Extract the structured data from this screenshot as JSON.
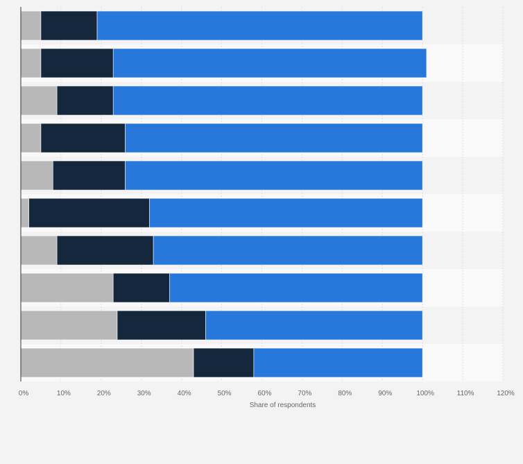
{
  "chart_data": {
    "type": "bar",
    "orientation": "horizontal",
    "stacked": true,
    "categories": [
      "",
      "",
      "",
      "",
      "",
      "",
      "",
      "",
      "",
      ""
    ],
    "series": [
      {
        "color": "#b8b8b8",
        "values": [
          5,
          5,
          9,
          5,
          8,
          2,
          9,
          23,
          24,
          43
        ]
      },
      {
        "color": "#14273d",
        "values": [
          14,
          18,
          14,
          21,
          18,
          30,
          24,
          14,
          22,
          15
        ]
      },
      {
        "color": "#2878dc",
        "values": [
          81,
          78,
          77,
          74,
          74,
          68,
          67,
          63,
          54,
          42
        ]
      }
    ],
    "xlabel": "Share of respondents",
    "xlim": [
      0,
      120
    ],
    "xticks": [
      "0%",
      "10%",
      "20%",
      "30%",
      "40%",
      "50%",
      "60%",
      "70%",
      "80%",
      "90%",
      "100%",
      "110%",
      "120%"
    ],
    "grid": true,
    "legend": "none"
  }
}
